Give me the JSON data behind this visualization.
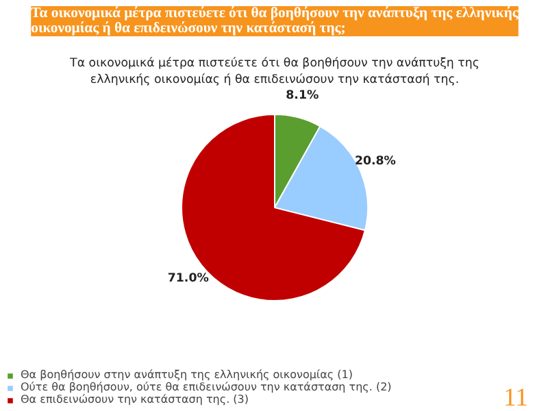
{
  "chart_data": {
    "type": "pie",
    "title": "Τα οικονομικά μέτρα πιστεύετε ότι θα βοηθήσουν την ανάπτυξη της ελληνικής οικονομίας ή θα επιδεινώσουν την κατάστασή της;",
    "subtitle": "Τα οικονομικά μέτρα πιστεύετε ότι θα βοηθήσουν την ανάπτυξη της ελληνικής οικονομίας ή θα επιδεινώσουν την κατάστασή της.",
    "categories": [
      "Θα βοηθήσουν στην ανάπτυξη της ελληνικής οικονομίας (1)",
      "Ούτε θα βοηθήσουν, ούτε θα επιδεινώσουν την κατάσταση της. (2)",
      "Θα επιδεινώσουν την κατάσταση της. (3)"
    ],
    "values": [
      8.1,
      20.8,
      71.0
    ],
    "colors": [
      "#5a9e2f",
      "#99ccff",
      "#c00000"
    ],
    "value_labels": [
      "8.1%",
      "20.8%",
      "71.0%"
    ],
    "annotations": [
      "11"
    ],
    "legend": "bottom left"
  }
}
